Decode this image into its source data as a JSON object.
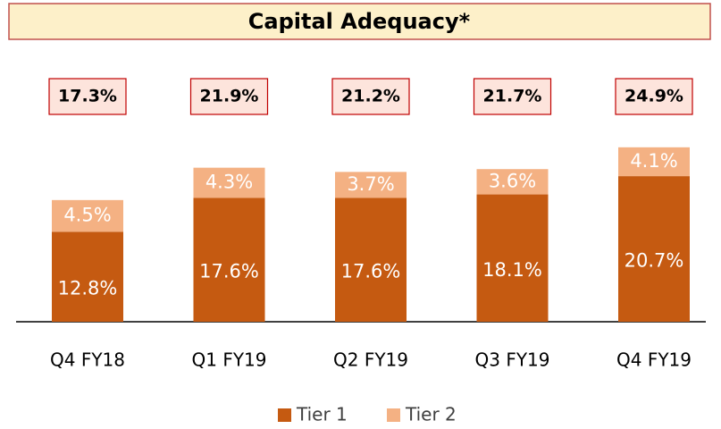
{
  "chart_data": {
    "type": "stacked_bar",
    "title": "Capital Adequacy*",
    "categories": [
      "Q4 FY18",
      "Q1 FY19",
      "Q2 FY19",
      "Q3 FY19",
      "Q4 FY19"
    ],
    "series": [
      {
        "name": "Tier 1",
        "color": "#c55a11",
        "values": [
          12.8,
          17.6,
          17.6,
          18.1,
          20.7
        ],
        "value_labels": [
          "12.8%",
          "17.6%",
          "17.6%",
          "18.1%",
          "20.7%"
        ]
      },
      {
        "name": "Tier 2",
        "color": "#f4b183",
        "values": [
          4.5,
          4.3,
          3.7,
          3.6,
          4.1
        ],
        "value_labels": [
          "4.5%",
          "4.3%",
          "3.7%",
          "3.6%",
          "4.1%"
        ]
      }
    ],
    "totals": [
      17.3,
      21.9,
      21.2,
      21.7,
      24.9
    ],
    "total_labels": [
      "17.3%",
      "21.9%",
      "21.2%",
      "21.7%",
      "24.9%"
    ],
    "legend": "bottom"
  }
}
